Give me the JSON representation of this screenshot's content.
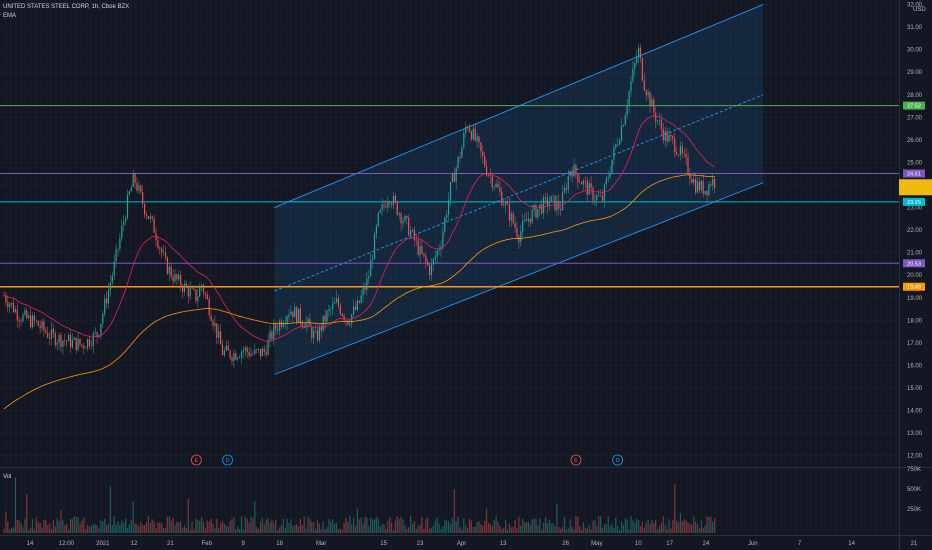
{
  "header": {
    "symbol_line": "UNITED STATES STEEL CORP, 1h, Cboe BZX",
    "indicator": "EMA",
    "volume_label": "Vol"
  },
  "colors": {
    "background": "#131722",
    "grid": "#1f2330",
    "up": "#26a69a",
    "down": "#ef5350",
    "ema_fast": "#e91e63",
    "ema_slow": "#ff9800",
    "channel": "#2196f3",
    "purple": "#7e57c2",
    "orange": "#ff9800",
    "green": "#4caf50",
    "cyan": "#00bcd4"
  },
  "chart_data": {
    "type": "candlestick",
    "currency": "USD",
    "y_ticks": [
      "12.00",
      "13.00",
      "14.00",
      "15.00",
      "16.00",
      "17.00",
      "18.00",
      "19.00",
      "20.00",
      "21.00",
      "22.00",
      "23.00",
      "24.00",
      "25.00",
      "26.00",
      "27.00",
      "28.00",
      "29.00",
      "30.00",
      "31.00",
      "32.00"
    ],
    "ylim": [
      11.5,
      32.2
    ],
    "x_labels": [
      {
        "label": "14",
        "t": 0.05
      },
      {
        "label": "12:00",
        "t": 0.12
      },
      {
        "label": "2021",
        "t": 0.19
      },
      {
        "label": "12",
        "t": 0.25
      },
      {
        "label": "21",
        "t": 0.32
      },
      {
        "label": "Feb",
        "t": 0.39
      },
      {
        "label": "9",
        "t": 0.46
      },
      {
        "label": "18",
        "t": 0.53
      },
      {
        "label": "Mar",
        "t": 0.61
      },
      {
        "label": "15",
        "t": 0.73
      },
      {
        "label": "23",
        "t": 0.8
      },
      {
        "label": "Apr",
        "t": 0.88
      },
      {
        "label": "13",
        "t": 0.96
      },
      {
        "label": "26",
        "t": 1.08
      },
      {
        "label": "May",
        "t": 1.14
      },
      {
        "label": "10",
        "t": 1.22
      },
      {
        "label": "17",
        "t": 1.28
      },
      {
        "label": "24",
        "t": 1.35
      },
      {
        "label": "Jun",
        "t": 1.44
      },
      {
        "label": "7",
        "t": 1.53
      },
      {
        "label": "14",
        "t": 1.63
      },
      {
        "label": "21",
        "t": 1.75
      }
    ],
    "price_path": [
      [
        0.0,
        19.1
      ],
      [
        0.03,
        18.2
      ],
      [
        0.06,
        17.9
      ],
      [
        0.09,
        17.3
      ],
      [
        0.12,
        17.1
      ],
      [
        0.15,
        16.9
      ],
      [
        0.18,
        17.4
      ],
      [
        0.21,
        20.2
      ],
      [
        0.24,
        23.5
      ],
      [
        0.25,
        24.3
      ],
      [
        0.27,
        23.0
      ],
      [
        0.29,
        22.0
      ],
      [
        0.31,
        20.5
      ],
      [
        0.33,
        19.8
      ],
      [
        0.35,
        19.4
      ],
      [
        0.37,
        19.0
      ],
      [
        0.38,
        19.6
      ],
      [
        0.4,
        18.2
      ],
      [
        0.42,
        16.6
      ],
      [
        0.44,
        16.5
      ],
      [
        0.46,
        16.7
      ],
      [
        0.48,
        16.5
      ],
      [
        0.5,
        16.6
      ],
      [
        0.52,
        17.6
      ],
      [
        0.55,
        18.5
      ],
      [
        0.58,
        17.9
      ],
      [
        0.6,
        17.2
      ],
      [
        0.62,
        18.2
      ],
      [
        0.64,
        18.8
      ],
      [
        0.66,
        18.0
      ],
      [
        0.68,
        18.6
      ],
      [
        0.7,
        19.8
      ],
      [
        0.72,
        22.5
      ],
      [
        0.74,
        23.6
      ],
      [
        0.76,
        22.8
      ],
      [
        0.78,
        22.0
      ],
      [
        0.8,
        21.0
      ],
      [
        0.82,
        20.2
      ],
      [
        0.84,
        21.5
      ],
      [
        0.86,
        24.0
      ],
      [
        0.88,
        25.6
      ],
      [
        0.89,
        26.8
      ],
      [
        0.91,
        25.8
      ],
      [
        0.93,
        24.6
      ],
      [
        0.95,
        23.8
      ],
      [
        0.97,
        22.8
      ],
      [
        0.99,
        21.8
      ],
      [
        1.01,
        22.6
      ],
      [
        1.03,
        23.0
      ],
      [
        1.05,
        23.3
      ],
      [
        1.07,
        23.0
      ],
      [
        1.09,
        24.8
      ],
      [
        1.11,
        24.2
      ],
      [
        1.13,
        23.6
      ],
      [
        1.15,
        23.3
      ],
      [
        1.17,
        25.2
      ],
      [
        1.19,
        26.8
      ],
      [
        1.21,
        29.0
      ],
      [
        1.22,
        30.0
      ],
      [
        1.23,
        28.6
      ],
      [
        1.25,
        27.2
      ],
      [
        1.27,
        26.2
      ],
      [
        1.29,
        25.8
      ],
      [
        1.31,
        25.0
      ],
      [
        1.33,
        24.0
      ],
      [
        1.35,
        23.8
      ],
      [
        1.36,
        24.2
      ],
      [
        1.37,
        24.1
      ]
    ],
    "channel": {
      "upper": [
        [
          0.52,
          23.0
        ],
        [
          1.46,
          32.0
        ]
      ],
      "middle": [
        [
          0.52,
          19.3
        ],
        [
          1.46,
          28.0
        ]
      ],
      "lower": [
        [
          0.52,
          15.6
        ],
        [
          1.46,
          24.1
        ]
      ]
    },
    "horizontal_levels": [
      {
        "price": 27.52,
        "label": "27.52",
        "color": "#4caf50"
      },
      {
        "price": 24.51,
        "label": "24.51",
        "color": "#7e57c2"
      },
      {
        "price": 23.25,
        "label": "23.25",
        "color": "#00bcd4"
      },
      {
        "price": 20.53,
        "label": "20.53",
        "color": "#7e57c2"
      },
      {
        "price": 19.49,
        "label": "19.49",
        "color": "#ff9800"
      }
    ],
    "current_price_box": {
      "price": 23.9,
      "color": "#f0b90b"
    },
    "events": [
      {
        "label": "E",
        "t": 0.37,
        "kind": "earnings"
      },
      {
        "label": "D",
        "t": 0.43,
        "kind": "dividend"
      },
      {
        "label": "E",
        "t": 1.1,
        "kind": "earnings"
      },
      {
        "label": "D",
        "t": 1.18,
        "kind": "dividend"
      }
    ],
    "volume_ticks": [
      "750K",
      "500K",
      "250K"
    ],
    "volume_max": 800
  }
}
